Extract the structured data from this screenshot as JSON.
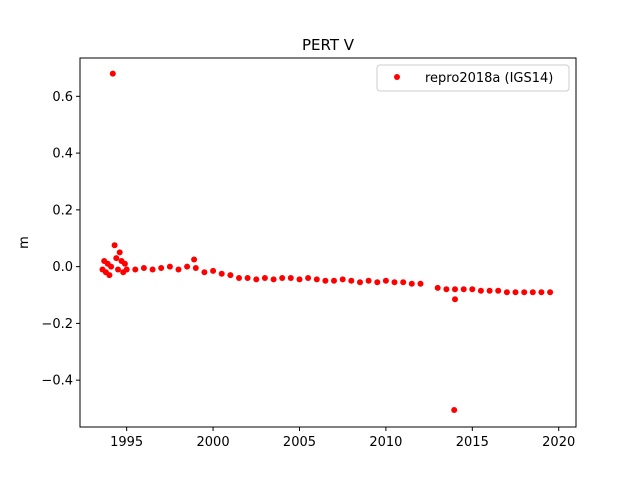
{
  "chart_data": {
    "type": "scatter",
    "title": "PERT V",
    "xlabel": "",
    "ylabel": "m",
    "xlim": [
      1992.3,
      2021.0
    ],
    "ylim": [
      -0.565,
      0.735
    ],
    "xticks": [
      1995,
      2000,
      2005,
      2010,
      2015,
      2020
    ],
    "xtick_labels": [
      "1995",
      "2000",
      "2005",
      "2010",
      "2015",
      "2020"
    ],
    "yticks": [
      0.6,
      0.4,
      0.2,
      0.0,
      -0.2,
      -0.4
    ],
    "ytick_labels": [
      "0.6",
      "0.4",
      "0.2",
      "0.0",
      "−0.2",
      "−0.4"
    ],
    "grid": false,
    "legend_position": "top-right",
    "series": [
      {
        "name": "repro2018a (IGS14)",
        "color": "#ff0000",
        "marker": "circle",
        "points": [
          [
            1993.6,
            -0.01
          ],
          [
            1993.7,
            0.02
          ],
          [
            1993.8,
            -0.02
          ],
          [
            1993.9,
            0.01
          ],
          [
            1994.0,
            -0.03
          ],
          [
            1994.1,
            0.0
          ],
          [
            1994.2,
            0.68
          ],
          [
            1994.3,
            0.075
          ],
          [
            1994.4,
            0.03
          ],
          [
            1994.5,
            -0.01
          ],
          [
            1994.6,
            0.05
          ],
          [
            1994.7,
            0.02
          ],
          [
            1994.8,
            -0.02
          ],
          [
            1994.9,
            0.01
          ],
          [
            1995.0,
            -0.01
          ],
          [
            1995.5,
            -0.01
          ],
          [
            1996.0,
            -0.005
          ],
          [
            1996.5,
            -0.01
          ],
          [
            1997.0,
            -0.005
          ],
          [
            1997.5,
            0.0
          ],
          [
            1998.0,
            -0.01
          ],
          [
            1998.5,
            0.0
          ],
          [
            1998.9,
            0.025
          ],
          [
            1999.0,
            -0.005
          ],
          [
            1999.5,
            -0.02
          ],
          [
            2000.0,
            -0.015
          ],
          [
            2000.5,
            -0.025
          ],
          [
            2001.0,
            -0.03
          ],
          [
            2001.5,
            -0.04
          ],
          [
            2002.0,
            -0.04
          ],
          [
            2002.5,
            -0.045
          ],
          [
            2003.0,
            -0.04
          ],
          [
            2003.5,
            -0.045
          ],
          [
            2004.0,
            -0.04
          ],
          [
            2004.5,
            -0.04
          ],
          [
            2005.0,
            -0.045
          ],
          [
            2005.5,
            -0.04
          ],
          [
            2006.0,
            -0.045
          ],
          [
            2006.5,
            -0.05
          ],
          [
            2007.0,
            -0.05
          ],
          [
            2007.5,
            -0.045
          ],
          [
            2008.0,
            -0.05
          ],
          [
            2008.5,
            -0.055
          ],
          [
            2009.0,
            -0.05
          ],
          [
            2009.5,
            -0.055
          ],
          [
            2010.0,
            -0.05
          ],
          [
            2010.5,
            -0.055
          ],
          [
            2011.0,
            -0.055
          ],
          [
            2011.5,
            -0.06
          ],
          [
            2012.0,
            -0.06
          ],
          [
            2013.0,
            -0.075
          ],
          [
            2013.5,
            -0.08
          ],
          [
            2014.0,
            -0.08
          ],
          [
            2014.0,
            -0.115
          ],
          [
            2013.95,
            -0.505
          ],
          [
            2014.5,
            -0.08
          ],
          [
            2015.0,
            -0.08
          ],
          [
            2015.5,
            -0.085
          ],
          [
            2016.0,
            -0.085
          ],
          [
            2016.5,
            -0.085
          ],
          [
            2017.0,
            -0.09
          ],
          [
            2017.5,
            -0.09
          ],
          [
            2018.0,
            -0.09
          ],
          [
            2018.5,
            -0.09
          ],
          [
            2019.0,
            -0.09
          ],
          [
            2019.5,
            -0.09
          ]
        ]
      }
    ]
  }
}
